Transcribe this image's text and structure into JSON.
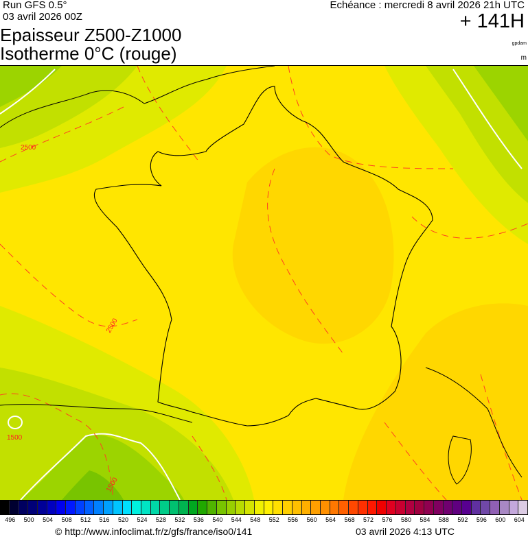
{
  "header": {
    "run": "Run GFS 0.5°",
    "run_date": "03 avril 2026 00Z",
    "title_line1": "Epaisseur Z500-Z1000",
    "title_line2": "Isotherme 0°C (rouge)",
    "echeance": "Echéance : mercredi 8 avril 2026 21h UTC",
    "lead_time": "+ 141H",
    "unit_thickness": "gpdam",
    "unit_isotherm": "m"
  },
  "map": {
    "isotherm_labels": [
      "2500",
      "2500",
      "1500",
      "1500"
    ],
    "isotherm_color": "#ff2020",
    "fill_colors": {
      "yellow": "#ffe600",
      "orange_yellow": "#ffd700",
      "lime": "#e0ea00",
      "yellow_green": "#c2e000",
      "green": "#9cd400",
      "dark_green": "#78c400"
    }
  },
  "colorbar": {
    "labels": [
      "496",
      "500",
      "504",
      "508",
      "512",
      "516",
      "520",
      "524",
      "528",
      "532",
      "536",
      "540",
      "544",
      "548",
      "552",
      "556",
      "560",
      "564",
      "568",
      "572",
      "576",
      "580",
      "584",
      "588",
      "592",
      "596",
      "600",
      "604"
    ],
    "colors": [
      "#000000",
      "#000030",
      "#000060",
      "#000078",
      "#000098",
      "#0000c0",
      "#0000ee",
      "#0018ff",
      "#0040ff",
      "#0060ff",
      "#0080ff",
      "#00a0ff",
      "#00c4ff",
      "#00e0ff",
      "#00f0e0",
      "#00e4c4",
      "#00d8a8",
      "#00cc88",
      "#00c070",
      "#00b450",
      "#00a820",
      "#20a800",
      "#50b400",
      "#78c400",
      "#98d000",
      "#b8dc00",
      "#d4e400",
      "#f0f000",
      "#fff000",
      "#ffe000",
      "#ffd000",
      "#ffc000",
      "#ffb000",
      "#ffa000",
      "#ff9000",
      "#ff7800",
      "#ff6000",
      "#ff4800",
      "#ff3000",
      "#ff1800",
      "#f00000",
      "#e00020",
      "#c80030",
      "#b00040",
      "#a00040",
      "#900050",
      "#800060",
      "#700070",
      "#600080",
      "#580090",
      "#6030a0",
      "#7048a8",
      "#9060b4",
      "#a888c4",
      "#c4a8dc",
      "#dccce4"
    ]
  },
  "footer": {
    "url": "© http://www.infoclimat.fr/z/gfs/france/iso0/141",
    "generated": "03 avril 2026  4:13 UTC"
  }
}
